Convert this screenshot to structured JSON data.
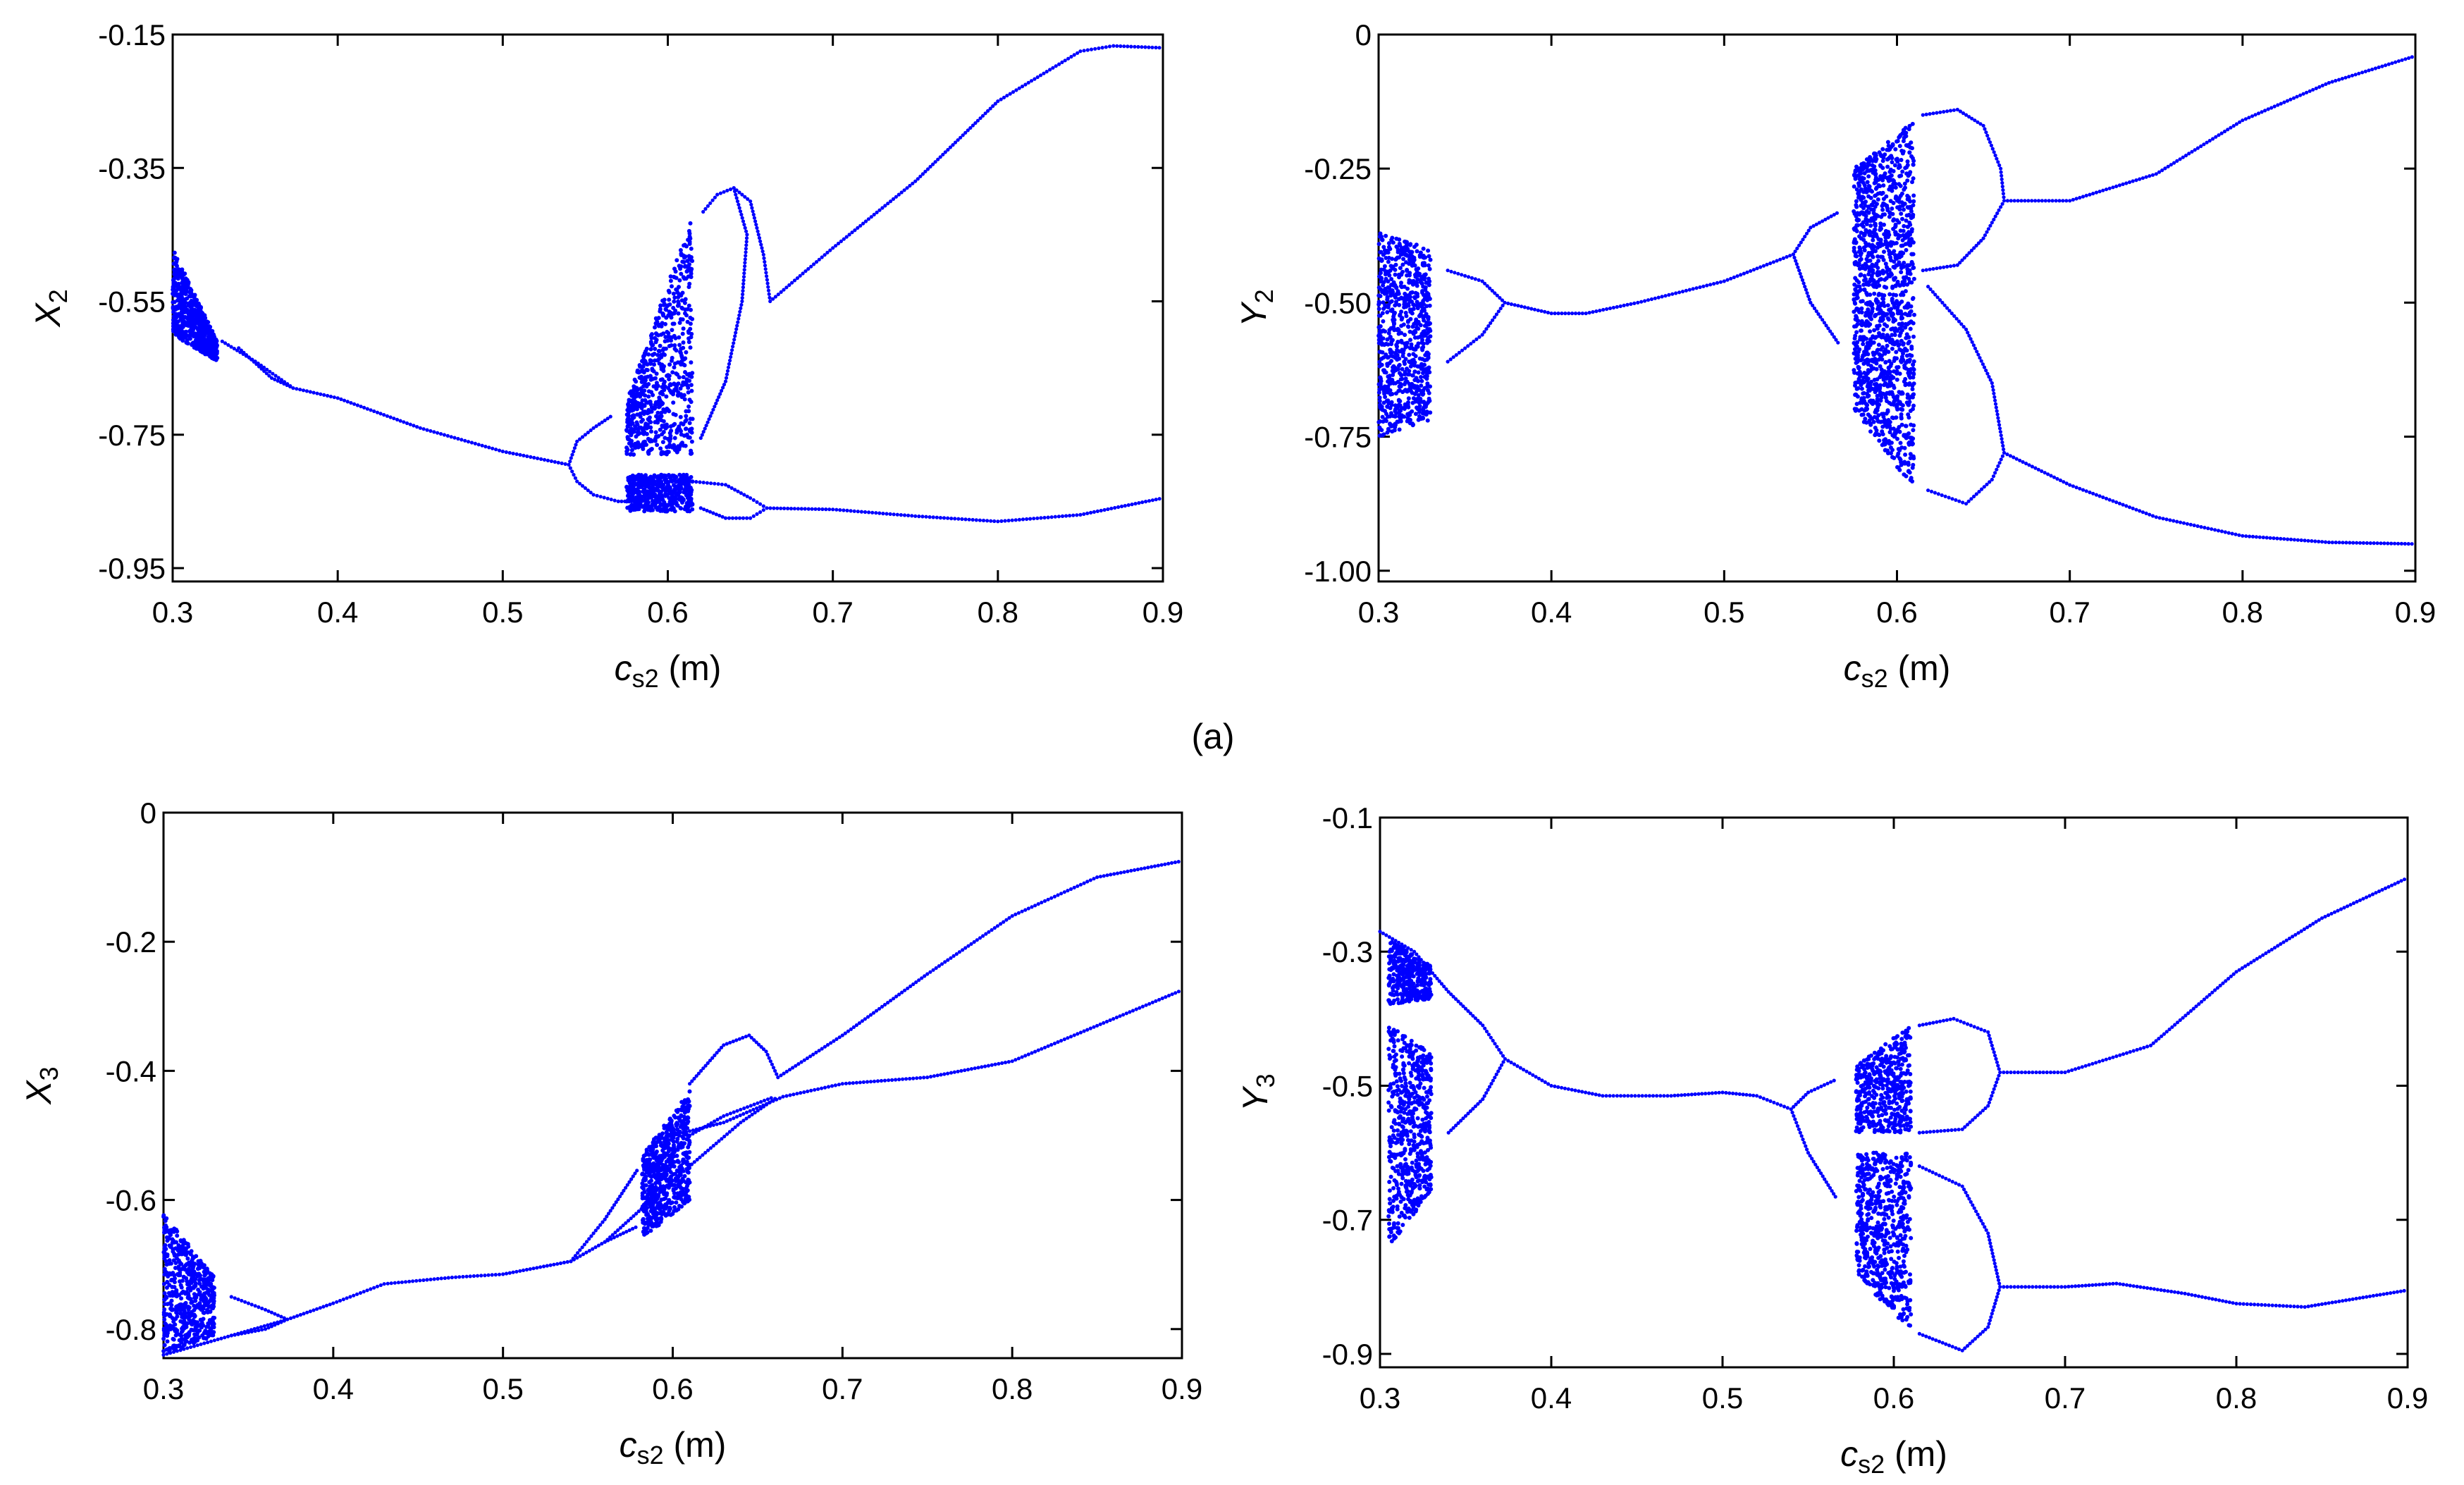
{
  "figure_label": "(a)",
  "chart_data": [
    {
      "type": "scatter",
      "id": "X2",
      "title": "",
      "xlabel": "c_s2 (m)",
      "xlabel_main": "c",
      "xlabel_sub": "s2",
      "xlabel_unit": " (m)",
      "ylabel_main": "X",
      "ylabel_sub": "2",
      "xlim": [
        0.3,
        0.9
      ],
      "ylim": [
        -0.97,
        -0.15
      ],
      "xticks": [
        0.3,
        0.4,
        0.5,
        0.6,
        0.7,
        0.8,
        0.9
      ],
      "xtick_labels": [
        "0.3",
        "0.4",
        "0.5",
        "0.6",
        "0.7",
        "0.8",
        "0.9"
      ],
      "yticks": [
        -0.15,
        -0.35,
        -0.55,
        -0.75,
        -0.95
      ],
      "ytick_labels": [
        "-0.15",
        "-0.35",
        "-0.55",
        "-0.75",
        "-0.95"
      ],
      "color": "#0000ff",
      "branches": [
        [
          [
            0.34,
            -0.62
          ],
          [
            0.36,
            -0.665
          ],
          [
            0.373,
            -0.68
          ],
          [
            0.4,
            -0.695
          ],
          [
            0.45,
            -0.74
          ],
          [
            0.5,
            -0.775
          ],
          [
            0.54,
            -0.795
          ]
        ],
        [
          [
            0.33,
            -0.61
          ],
          [
            0.35,
            -0.64
          ],
          [
            0.373,
            -0.68
          ]
        ],
        [
          [
            0.54,
            -0.795
          ],
          [
            0.545,
            -0.76
          ],
          [
            0.555,
            -0.74
          ],
          [
            0.567,
            -0.72
          ]
        ],
        [
          [
            0.54,
            -0.795
          ],
          [
            0.545,
            -0.82
          ],
          [
            0.555,
            -0.84
          ],
          [
            0.57,
            -0.85
          ],
          [
            0.58,
            -0.85
          ]
        ],
        [
          [
            0.62,
            -0.755
          ],
          [
            0.635,
            -0.67
          ],
          [
            0.645,
            -0.55
          ],
          [
            0.648,
            -0.45
          ],
          [
            0.64,
            -0.38
          ],
          [
            0.63,
            -0.39
          ],
          [
            0.62,
            -0.42
          ]
        ],
        [
          [
            0.64,
            -0.38
          ],
          [
            0.65,
            -0.4
          ],
          [
            0.658,
            -0.48
          ],
          [
            0.662,
            -0.55
          ]
        ],
        [
          [
            0.615,
            -0.82
          ],
          [
            0.635,
            -0.825
          ],
          [
            0.65,
            -0.845
          ],
          [
            0.66,
            -0.86
          ]
        ],
        [
          [
            0.62,
            -0.86
          ],
          [
            0.635,
            -0.875
          ],
          [
            0.65,
            -0.875
          ],
          [
            0.66,
            -0.86
          ]
        ],
        [
          [
            0.66,
            -0.86
          ],
          [
            0.7,
            -0.862
          ],
          [
            0.75,
            -0.872
          ],
          [
            0.8,
            -0.88
          ],
          [
            0.85,
            -0.87
          ],
          [
            0.9,
            -0.845
          ]
        ],
        [
          [
            0.662,
            -0.55
          ],
          [
            0.7,
            -0.47
          ],
          [
            0.75,
            -0.37
          ],
          [
            0.8,
            -0.25
          ],
          [
            0.85,
            -0.175
          ],
          [
            0.87,
            -0.167
          ],
          [
            0.9,
            -0.17
          ]
        ]
      ],
      "clouds": [
        {
          "x": [
            0.3,
            0.327
          ],
          "ytop": [
            -0.47,
            -0.61
          ],
          "ybot": [
            -0.6,
            -0.64
          ],
          "n": 700
        },
        {
          "x": [
            0.575,
            0.615
          ],
          "ytop": [
            -0.7,
            -0.42
          ],
          "ybot": [
            -0.78,
            -0.78
          ],
          "n": 700
        },
        {
          "x": [
            0.575,
            0.615
          ],
          "ytop": [
            -0.81,
            -0.81
          ],
          "ybot": [
            -0.865,
            -0.865
          ],
          "n": 500
        }
      ]
    },
    {
      "type": "scatter",
      "id": "Y2",
      "title": "",
      "xlabel": "c_s2 (m)",
      "xlabel_main": "c",
      "xlabel_sub": "s2",
      "xlabel_unit": " (m)",
      "ylabel_main": "Y",
      "ylabel_sub": "2",
      "xlim": [
        0.3,
        0.9
      ],
      "ylim": [
        -1.02,
        0
      ],
      "xticks": [
        0.3,
        0.4,
        0.5,
        0.6,
        0.7,
        0.8,
        0.9
      ],
      "xtick_labels": [
        "0.3",
        "0.4",
        "0.5",
        "0.6",
        "0.7",
        "0.8",
        "0.9"
      ],
      "yticks": [
        0,
        -0.25,
        -0.5,
        -0.75,
        -1.0
      ],
      "ytick_labels": [
        "0",
        "-0.25",
        "-0.50",
        "-0.75",
        "-1.00"
      ],
      "color": "#0000ff",
      "branches": [
        [
          [
            0.34,
            -0.44
          ],
          [
            0.36,
            -0.46
          ],
          [
            0.373,
            -0.5
          ]
        ],
        [
          [
            0.34,
            -0.61
          ],
          [
            0.36,
            -0.56
          ],
          [
            0.373,
            -0.5
          ]
        ],
        [
          [
            0.373,
            -0.5
          ],
          [
            0.4,
            -0.52
          ],
          [
            0.42,
            -0.52
          ],
          [
            0.45,
            -0.5
          ],
          [
            0.5,
            -0.46
          ],
          [
            0.54,
            -0.41
          ]
        ],
        [
          [
            0.54,
            -0.41
          ],
          [
            0.55,
            -0.36
          ],
          [
            0.567,
            -0.33
          ]
        ],
        [
          [
            0.54,
            -0.41
          ],
          [
            0.55,
            -0.5
          ],
          [
            0.567,
            -0.58
          ]
        ],
        [
          [
            0.615,
            -0.15
          ],
          [
            0.635,
            -0.14
          ],
          [
            0.65,
            -0.17
          ],
          [
            0.66,
            -0.25
          ],
          [
            0.662,
            -0.31
          ]
        ],
        [
          [
            0.615,
            -0.44
          ],
          [
            0.635,
            -0.43
          ],
          [
            0.65,
            -0.38
          ],
          [
            0.662,
            -0.31
          ]
        ],
        [
          [
            0.618,
            -0.47
          ],
          [
            0.64,
            -0.55
          ],
          [
            0.655,
            -0.65
          ],
          [
            0.662,
            -0.78
          ]
        ],
        [
          [
            0.618,
            -0.85
          ],
          [
            0.64,
            -0.875
          ],
          [
            0.655,
            -0.83
          ],
          [
            0.662,
            -0.78
          ]
        ],
        [
          [
            0.662,
            -0.31
          ],
          [
            0.7,
            -0.31
          ],
          [
            0.75,
            -0.26
          ],
          [
            0.8,
            -0.16
          ],
          [
            0.85,
            -0.09
          ],
          [
            0.9,
            -0.04
          ]
        ],
        [
          [
            0.662,
            -0.78
          ],
          [
            0.7,
            -0.84
          ],
          [
            0.75,
            -0.9
          ],
          [
            0.8,
            -0.935
          ],
          [
            0.85,
            -0.947
          ],
          [
            0.9,
            -0.95
          ]
        ]
      ],
      "clouds": [
        {
          "x": [
            0.3,
            0.33
          ],
          "ytop": [
            -0.37,
            -0.4
          ],
          "ybot": [
            -0.75,
            -0.72
          ],
          "n": 800
        },
        {
          "x": [
            0.575,
            0.61
          ],
          "ytop": [
            -0.25,
            -0.16
          ],
          "ybot": [
            -0.45,
            -0.45
          ],
          "n": 600
        },
        {
          "x": [
            0.575,
            0.61
          ],
          "ytop": [
            -0.45,
            -0.45
          ],
          "ybot": [
            -0.7,
            -0.85
          ],
          "n": 800
        }
      ]
    },
    {
      "type": "scatter",
      "id": "X3",
      "title": "",
      "xlabel": "c_s2 (m)",
      "xlabel_main": "c",
      "xlabel_sub": "s2",
      "xlabel_unit": " (m)",
      "ylabel_main": "X",
      "ylabel_sub": "3",
      "xlim": [
        0.3,
        0.9
      ],
      "ylim": [
        -0.845,
        0
      ],
      "xticks": [
        0.3,
        0.4,
        0.5,
        0.6,
        0.7,
        0.8,
        0.9
      ],
      "xtick_labels": [
        "0.3",
        "0.4",
        "0.5",
        "0.6",
        "0.7",
        "0.8",
        "0.9"
      ],
      "yticks": [
        0,
        -0.2,
        -0.4,
        -0.6,
        -0.8
      ],
      "ytick_labels": [
        "0",
        "-0.2",
        "-0.4",
        "-0.6",
        "-0.8"
      ],
      "color": "#0000ff",
      "branches": [
        [
          [
            0.3,
            -0.84
          ],
          [
            0.34,
            -0.81
          ],
          [
            0.373,
            -0.785
          ]
        ],
        [
          [
            0.34,
            -0.75
          ],
          [
            0.36,
            -0.77
          ],
          [
            0.373,
            -0.785
          ]
        ],
        [
          [
            0.34,
            -0.81
          ],
          [
            0.36,
            -0.8
          ],
          [
            0.373,
            -0.785
          ]
        ],
        [
          [
            0.373,
            -0.785
          ],
          [
            0.4,
            -0.76
          ],
          [
            0.43,
            -0.73
          ],
          [
            0.47,
            -0.72
          ],
          [
            0.5,
            -0.715
          ],
          [
            0.54,
            -0.695
          ]
        ],
        [
          [
            0.54,
            -0.695
          ],
          [
            0.56,
            -0.63
          ],
          [
            0.58,
            -0.55
          ]
        ],
        [
          [
            0.54,
            -0.695
          ],
          [
            0.56,
            -0.665
          ],
          [
            0.58,
            -0.64
          ]
        ],
        [
          [
            0.61,
            -0.42
          ],
          [
            0.63,
            -0.36
          ],
          [
            0.645,
            -0.345
          ],
          [
            0.655,
            -0.37
          ],
          [
            0.662,
            -0.41
          ]
        ],
        [
          [
            0.61,
            -0.5
          ],
          [
            0.63,
            -0.47
          ],
          [
            0.66,
            -0.44
          ]
        ],
        [
          [
            0.6,
            -0.5
          ],
          [
            0.63,
            -0.48
          ],
          [
            0.665,
            -0.44
          ],
          [
            0.7,
            -0.42
          ],
          [
            0.75,
            -0.41
          ],
          [
            0.8,
            -0.385
          ],
          [
            0.85,
            -0.33
          ],
          [
            0.9,
            -0.275
          ]
        ],
        [
          [
            0.662,
            -0.41
          ],
          [
            0.7,
            -0.345
          ],
          [
            0.75,
            -0.25
          ],
          [
            0.8,
            -0.16
          ],
          [
            0.85,
            -0.1
          ],
          [
            0.9,
            -0.075
          ]
        ],
        [
          [
            0.56,
            -0.665
          ],
          [
            0.6,
            -0.57
          ],
          [
            0.64,
            -0.48
          ],
          [
            0.662,
            -0.44
          ]
        ]
      ],
      "clouds": [
        {
          "x": [
            0.3,
            0.33
          ],
          "ytop": [
            -0.62,
            -0.72
          ],
          "ybot": [
            -0.84,
            -0.81
          ],
          "n": 600
        },
        {
          "x": [
            0.582,
            0.61
          ],
          "ytop": [
            -0.53,
            -0.43
          ],
          "ybot": [
            -0.66,
            -0.6
          ],
          "n": 700
        }
      ]
    },
    {
      "type": "scatter",
      "id": "Y3",
      "title": "",
      "xlabel": "c_s2 (m)",
      "xlabel_main": "c",
      "xlabel_sub": "s2",
      "xlabel_unit": " (m)",
      "ylabel_main": "Y",
      "ylabel_sub": "3",
      "xlim": [
        0.3,
        0.9
      ],
      "ylim": [
        -0.92,
        -0.1
      ],
      "xticks": [
        0.3,
        0.4,
        0.5,
        0.6,
        0.7,
        0.8,
        0.9
      ],
      "xtick_labels": [
        "0.3",
        "0.4",
        "0.5",
        "0.6",
        "0.7",
        "0.8",
        "0.9"
      ],
      "yticks": [
        -0.1,
        -0.3,
        -0.5,
        -0.7,
        -0.9
      ],
      "ytick_labels": [
        "-0.1",
        "-0.3",
        "-0.5",
        "-0.7",
        "-0.9"
      ],
      "color": "#0000ff",
      "branches": [
        [
          [
            0.3,
            -0.27
          ],
          [
            0.32,
            -0.3
          ],
          [
            0.34,
            -0.36
          ],
          [
            0.36,
            -0.41
          ],
          [
            0.373,
            -0.46
          ]
        ],
        [
          [
            0.34,
            -0.57
          ],
          [
            0.36,
            -0.52
          ],
          [
            0.373,
            -0.46
          ]
        ],
        [
          [
            0.373,
            -0.46
          ],
          [
            0.4,
            -0.5
          ],
          [
            0.43,
            -0.515
          ],
          [
            0.47,
            -0.515
          ],
          [
            0.5,
            -0.51
          ],
          [
            0.52,
            -0.515
          ],
          [
            0.54,
            -0.535
          ]
        ],
        [
          [
            0.54,
            -0.535
          ],
          [
            0.55,
            -0.51
          ],
          [
            0.567,
            -0.49
          ]
        ],
        [
          [
            0.54,
            -0.535
          ],
          [
            0.55,
            -0.6
          ],
          [
            0.567,
            -0.67
          ]
        ],
        [
          [
            0.615,
            -0.41
          ],
          [
            0.635,
            -0.4
          ],
          [
            0.655,
            -0.42
          ],
          [
            0.662,
            -0.48
          ]
        ],
        [
          [
            0.615,
            -0.57
          ],
          [
            0.64,
            -0.565
          ],
          [
            0.655,
            -0.53
          ],
          [
            0.662,
            -0.48
          ]
        ],
        [
          [
            0.615,
            -0.62
          ],
          [
            0.64,
            -0.65
          ],
          [
            0.655,
            -0.72
          ],
          [
            0.662,
            -0.8
          ]
        ],
        [
          [
            0.615,
            -0.87
          ],
          [
            0.64,
            -0.895
          ],
          [
            0.655,
            -0.86
          ],
          [
            0.662,
            -0.8
          ]
        ],
        [
          [
            0.662,
            -0.48
          ],
          [
            0.7,
            -0.48
          ],
          [
            0.75,
            -0.44
          ],
          [
            0.8,
            -0.33
          ],
          [
            0.85,
            -0.25
          ],
          [
            0.9,
            -0.19
          ]
        ],
        [
          [
            0.662,
            -0.8
          ],
          [
            0.7,
            -0.8
          ],
          [
            0.73,
            -0.795
          ],
          [
            0.77,
            -0.81
          ],
          [
            0.8,
            -0.825
          ],
          [
            0.84,
            -0.83
          ],
          [
            0.9,
            -0.805
          ]
        ]
      ],
      "clouds": [
        {
          "x": [
            0.305,
            0.33
          ],
          "ytop": [
            -0.28,
            -0.32
          ],
          "ybot": [
            -0.38,
            -0.37
          ],
          "n": 350
        },
        {
          "x": [
            0.305,
            0.33
          ],
          "ytop": [
            -0.41,
            -0.45
          ],
          "ybot": [
            -0.74,
            -0.66
          ],
          "n": 600
        },
        {
          "x": [
            0.578,
            0.61
          ],
          "ytop": [
            -0.47,
            -0.41
          ],
          "ybot": [
            -0.57,
            -0.57
          ],
          "n": 500
        },
        {
          "x": [
            0.578,
            0.61
          ],
          "ytop": [
            -0.6,
            -0.6
          ],
          "ybot": [
            -0.78,
            -0.87
          ],
          "n": 650
        }
      ]
    }
  ]
}
